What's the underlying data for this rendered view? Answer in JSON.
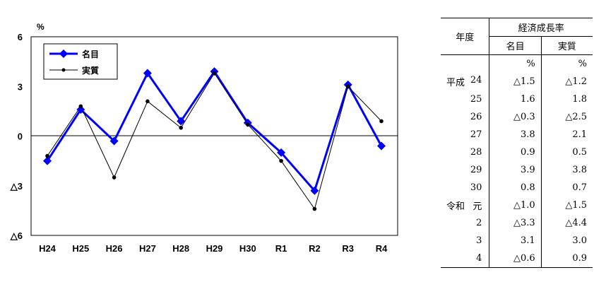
{
  "chart_data": {
    "type": "line",
    "unit_label": "%",
    "categories": [
      "H24",
      "H25",
      "H26",
      "H27",
      "H28",
      "H29",
      "H30",
      "R1",
      "R2",
      "R3",
      "R4"
    ],
    "y_ticks": [
      {
        "value": 6,
        "label": "6"
      },
      {
        "value": 3,
        "label": "3"
      },
      {
        "value": 0,
        "label": "0"
      },
      {
        "value": -3,
        "label": "△3"
      },
      {
        "value": -6,
        "label": "△6"
      }
    ],
    "ylim": [
      -6,
      6
    ],
    "grid": false,
    "zero_line": true,
    "legend_position": "top-left",
    "series": [
      {
        "name": "名目",
        "color": "#0000ff",
        "marker": "diamond",
        "values": [
          -1.5,
          1.6,
          -0.3,
          3.8,
          0.9,
          3.9,
          0.8,
          -1.0,
          -3.3,
          3.1,
          -0.6
        ]
      },
      {
        "name": "実質",
        "color": "#000000",
        "marker": "dot",
        "values": [
          -1.2,
          1.8,
          -2.5,
          2.1,
          0.5,
          3.8,
          0.7,
          -1.5,
          -4.4,
          3.0,
          0.9
        ]
      }
    ]
  },
  "table": {
    "header_year": "年度",
    "header_rate": "経済成長率",
    "header_nominal": "名目",
    "header_real": "実質",
    "unit_nominal": "%",
    "unit_real": "%",
    "rows": [
      {
        "era": "平成",
        "year": "24",
        "nominal": "△1.5",
        "real": "△1.2"
      },
      {
        "era": "",
        "year": "25",
        "nominal": "1.6",
        "real": "1.8"
      },
      {
        "era": "",
        "year": "26",
        "nominal": "△0.3",
        "real": "△2.5"
      },
      {
        "era": "",
        "year": "27",
        "nominal": "3.8",
        "real": "2.1"
      },
      {
        "era": "",
        "year": "28",
        "nominal": "0.9",
        "real": "0.5"
      },
      {
        "era": "",
        "year": "29",
        "nominal": "3.9",
        "real": "3.8"
      },
      {
        "era": "",
        "year": "30",
        "nominal": "0.8",
        "real": "0.7"
      },
      {
        "era": "令和",
        "year": "元",
        "nominal": "△1.0",
        "real": "△1.5"
      },
      {
        "era": "",
        "year": "2",
        "nominal": "△3.3",
        "real": "△4.4"
      },
      {
        "era": "",
        "year": "3",
        "nominal": "3.1",
        "real": "3.0"
      },
      {
        "era": "",
        "year": "4",
        "nominal": "△0.6",
        "real": "0.9"
      }
    ]
  }
}
